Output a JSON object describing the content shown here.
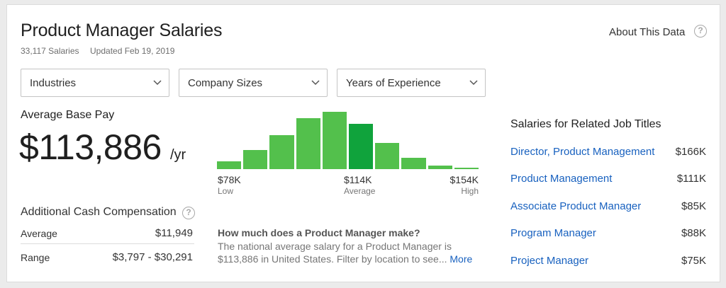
{
  "header": {
    "title": "Product Manager Salaries",
    "salaries_count": "33,117 Salaries",
    "updated": "Updated Feb 19, 2019",
    "about_label": "About This Data",
    "help_glyph": "?"
  },
  "filters": [
    {
      "label": "Industries"
    },
    {
      "label": "Company Sizes"
    },
    {
      "label": "Years of Experience"
    }
  ],
  "pay": {
    "heading": "Average Base Pay",
    "amount": "$113,886",
    "unit": "/yr"
  },
  "additional": {
    "heading": "Additional Cash Compensation",
    "rows": [
      {
        "label": "Average",
        "value": "$11,949"
      },
      {
        "label": "Range",
        "value": "$3,797 - $30,291"
      }
    ]
  },
  "histogram": {
    "bar_fractions": [
      0.09,
      0.235,
      0.41,
      0.62,
      0.69,
      0.55,
      0.315,
      0.135,
      0.045,
      0.02
    ],
    "active_index": 5,
    "colors": {
      "bar": "#53c04c",
      "active": "#10a33c"
    },
    "low": {
      "value": "$78K",
      "label": "Low"
    },
    "avg": {
      "value": "$114K",
      "label": "Average"
    },
    "high": {
      "value": "$154K",
      "label": "High"
    }
  },
  "faq": {
    "question": "How much does a Product Manager make?",
    "answer": "The national average salary for a Product Manager is $113,886 in United States. Filter by location to see...",
    "more_label": "More"
  },
  "related": {
    "heading": "Salaries for Related Job Titles",
    "items": [
      {
        "title": "Director, Product Management",
        "salary": "$166K"
      },
      {
        "title": "Product Management",
        "salary": "$111K"
      },
      {
        "title": "Associate Product Manager",
        "salary": "$85K"
      },
      {
        "title": "Program Manager",
        "salary": "$88K"
      },
      {
        "title": "Project Manager",
        "salary": "$75K"
      }
    ]
  },
  "colors": {
    "link": "#1861bf",
    "green": "#53c04c",
    "green_active": "#10a33c"
  }
}
